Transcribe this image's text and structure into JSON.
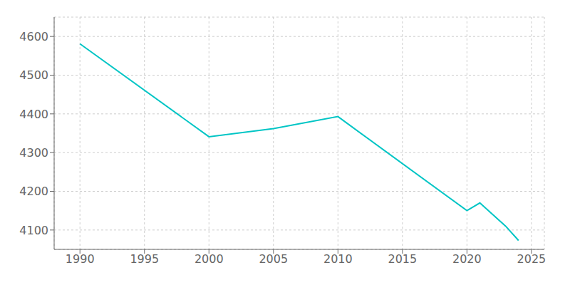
{
  "chart_data": {
    "type": "line",
    "x": [
      1990,
      2000,
      2005,
      2010,
      2020,
      2021,
      2023,
      2024
    ],
    "values": [
      4581,
      4341,
      4362,
      4393,
      4150,
      4170,
      4110,
      4073
    ],
    "color": "#00C5C5",
    "xlim": [
      1988,
      2026
    ],
    "xticks": [
      1990,
      1995,
      2000,
      2005,
      2010,
      2015,
      2020,
      2025
    ],
    "ylim": [
      4050,
      4650
    ],
    "yticks": [
      4100,
      4200,
      4300,
      4400,
      4500,
      4600
    ],
    "grid": true
  }
}
